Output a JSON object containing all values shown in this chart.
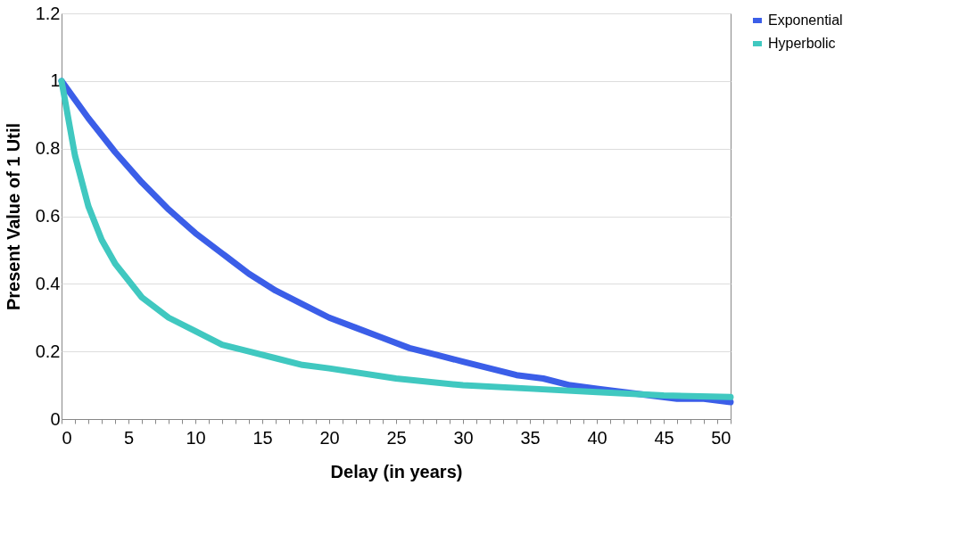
{
  "chart_data": {
    "type": "line",
    "xlabel": "Delay (in years)",
    "ylabel": "Present Value of 1 Util",
    "xlim": [
      0,
      50
    ],
    "xticks": [
      0,
      {
        "value": 1,
        "label": null
      },
      {
        "value": 2,
        "label": null
      },
      {
        "value": 3,
        "label": null
      },
      {
        "value": 4,
        "label": null
      },
      5,
      {
        "value": 6,
        "label": null
      },
      {
        "value": 7,
        "label": null
      },
      {
        "value": 8,
        "label": null
      },
      {
        "value": 9,
        "label": null
      },
      10,
      {
        "value": 11,
        "label": null
      },
      {
        "value": 12,
        "label": null
      },
      {
        "value": 13,
        "label": null
      },
      {
        "value": 14,
        "label": null
      },
      15,
      {
        "value": 16,
        "label": null
      },
      {
        "value": 17,
        "label": null
      },
      {
        "value": 18,
        "label": null
      },
      {
        "value": 19,
        "label": null
      },
      20,
      {
        "value": 21,
        "label": null
      },
      {
        "value": 22,
        "label": null
      },
      {
        "value": 23,
        "label": null
      },
      {
        "value": 24,
        "label": null
      },
      25,
      {
        "value": 26,
        "label": null
      },
      {
        "value": 27,
        "label": null
      },
      {
        "value": 28,
        "label": null
      },
      {
        "value": 29,
        "label": null
      },
      30,
      {
        "value": 31,
        "label": null
      },
      {
        "value": 32,
        "label": null
      },
      {
        "value": 33,
        "label": null
      },
      {
        "value": 34,
        "label": null
      },
      35,
      {
        "value": 36,
        "label": null
      },
      {
        "value": 37,
        "label": null
      },
      {
        "value": 38,
        "label": null
      },
      {
        "value": 39,
        "label": null
      },
      40,
      {
        "value": 41,
        "label": null
      },
      {
        "value": 42,
        "label": null
      },
      {
        "value": 43,
        "label": null
      },
      {
        "value": 44,
        "label": null
      },
      45,
      {
        "value": 46,
        "label": null
      },
      {
        "value": 47,
        "label": null
      },
      {
        "value": 48,
        "label": null
      },
      {
        "value": 49,
        "label": null
      },
      50
    ],
    "ylim": [
      0,
      1.2
    ],
    "yticks": [
      0,
      0.2,
      0.4,
      0.6,
      0.8,
      1,
      1.2
    ],
    "grid": "y",
    "legend": "right",
    "marker": "none",
    "line_style": "solid",
    "series": [
      {
        "name": "Exponential",
        "color": "#3b5ee8",
        "x": [
          0,
          2,
          4,
          6,
          8,
          10,
          12,
          14,
          16,
          18,
          20,
          22,
          24,
          26,
          28,
          30,
          32,
          34,
          36,
          38,
          40,
          42,
          44,
          46,
          48,
          50
        ],
        "values": [
          1,
          0.89,
          0.79,
          0.7,
          0.62,
          0.55,
          0.49,
          0.43,
          0.38,
          0.34,
          0.3,
          0.27,
          0.24,
          0.21,
          0.19,
          0.17,
          0.15,
          0.13,
          0.12,
          0.1,
          0.09,
          0.08,
          0.07,
          0.06,
          0.06,
          0.05
        ]
      },
      {
        "name": "Hyperbolic",
        "color": "#40c8c0",
        "x": [
          0,
          1,
          2,
          3,
          4,
          5,
          6,
          8,
          10,
          12,
          14,
          16,
          18,
          20,
          25,
          30,
          35,
          40,
          45,
          50
        ],
        "values": [
          1,
          0.78,
          0.63,
          0.53,
          0.46,
          0.41,
          0.36,
          0.3,
          0.26,
          0.22,
          0.2,
          0.18,
          0.16,
          0.15,
          0.12,
          0.1,
          0.09,
          0.08,
          0.07,
          0.065
        ]
      }
    ]
  }
}
